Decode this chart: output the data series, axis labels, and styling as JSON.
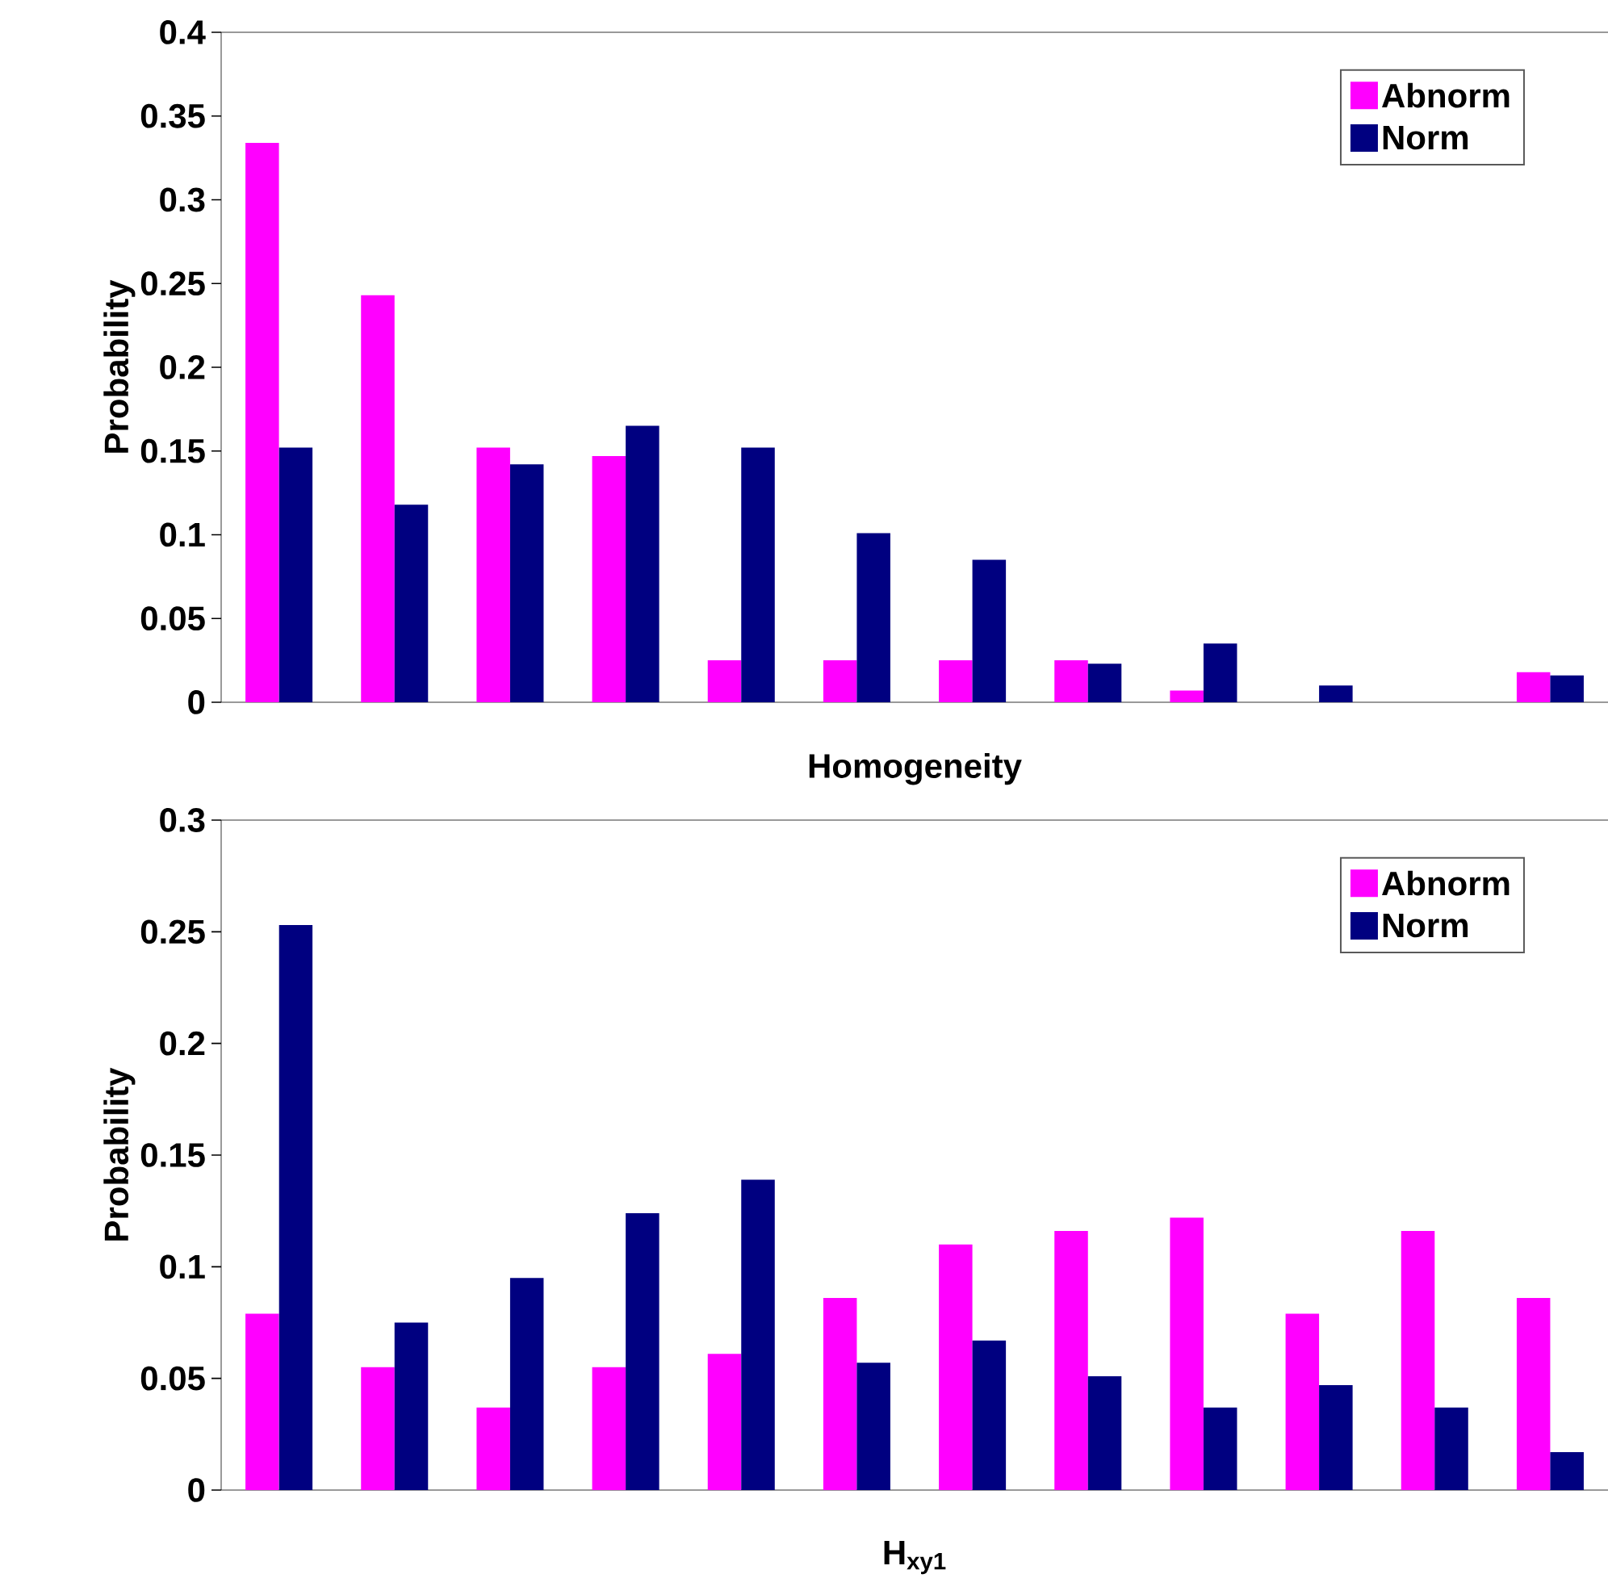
{
  "chart_data": [
    {
      "type": "bar",
      "xlabel": "Homogeneity",
      "ylabel": "Probability",
      "categories": [
        null,
        null,
        null,
        null,
        null,
        null,
        null,
        null,
        null,
        null,
        null,
        null
      ],
      "ylim": [
        0,
        0.4
      ],
      "yticks": [
        0,
        0.05,
        0.1,
        0.15,
        0.2,
        0.25,
        0.3,
        0.35,
        0.4
      ],
      "legend": "top right",
      "grid": false,
      "series": [
        {
          "name": "Abnorm",
          "color": "#ff00ff",
          "values": [
            0.334,
            0.243,
            0.152,
            0.147,
            0.025,
            0.025,
            0.025,
            0.025,
            0.007,
            0,
            0,
            0.018
          ]
        },
        {
          "name": "Norm",
          "color": "#000080",
          "values": [
            0.152,
            0.118,
            0.142,
            0.165,
            0.152,
            0.101,
            0.085,
            0.023,
            0.035,
            0.01,
            0,
            0.016
          ]
        }
      ]
    },
    {
      "type": "bar",
      "xlabel": "H$_{xy1}$",
      "ylabel": "Probability",
      "categories": [
        null,
        null,
        null,
        null,
        null,
        null,
        null,
        null,
        null,
        null,
        null,
        null
      ],
      "ylim": [
        0,
        0.3
      ],
      "yticks": [
        0,
        0.05,
        0.1,
        0.15,
        0.2,
        0.25,
        0.3
      ],
      "legend": "top right",
      "grid": false,
      "series": [
        {
          "name": "Abnorm",
          "color": "#ff00ff",
          "values": [
            0.079,
            0.055,
            0.037,
            0.055,
            0.061,
            0.086,
            0.11,
            0.116,
            0.122,
            0.079,
            0.116,
            0.086
          ]
        },
        {
          "name": "Norm",
          "color": "#000080",
          "values": [
            0.253,
            0.075,
            0.095,
            0.124,
            0.139,
            0.057,
            0.067,
            0.051,
            0.037,
            0.047,
            0.037,
            0.017
          ]
        }
      ]
    }
  ]
}
